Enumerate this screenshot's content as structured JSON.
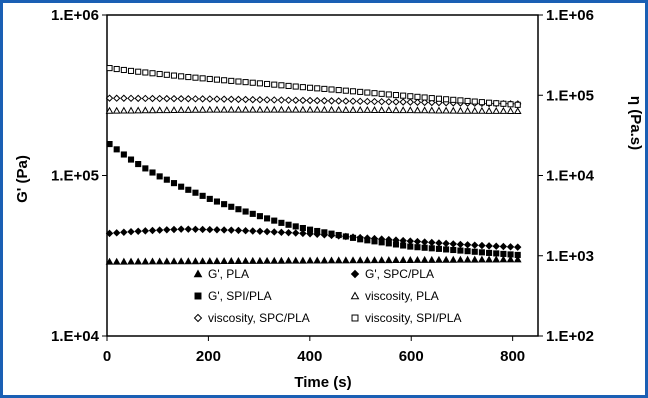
{
  "chart_data": {
    "type": "scatter",
    "xlabel": "Time (s)",
    "ylabel_left": "G' (Pa)",
    "ylabel_right": "η (Pa.s)",
    "xlim": [
      0,
      850
    ],
    "ylim_left": [
      10000,
      1000000
    ],
    "ylim_right": [
      100,
      1000000
    ],
    "yscale": "log",
    "grid": false,
    "legend_position": "bottom-inside",
    "x_ticks": [
      0,
      200,
      400,
      600,
      800
    ],
    "x_tick_labels": [
      "0",
      "200",
      "400",
      "600",
      "800"
    ],
    "y_left_ticks": [
      10000,
      100000,
      1000000
    ],
    "y_left_tick_labels": [
      "1.E+04",
      "1.E+05",
      "1.E+06"
    ],
    "y_right_ticks": [
      100,
      1000,
      10000,
      100000,
      1000000
    ],
    "y_right_tick_labels": [
      "1.E+02",
      "1.E+03",
      "1.E+04",
      "1.E+05",
      "1.E+06"
    ],
    "series": [
      {
        "name": "G', PLA",
        "axis": "left",
        "marker": "triangle-filled",
        "x": [
          5,
          810
        ],
        "y": [
          29000,
          30000
        ],
        "n_points": 58
      },
      {
        "name": "G', SPC/PLA",
        "axis": "right",
        "marker": "diamond-filled",
        "x": [
          5,
          50,
          100,
          150,
          200,
          250,
          300,
          350,
          400,
          450,
          500,
          550,
          600,
          650,
          700,
          750,
          810
        ],
        "y": [
          1900,
          2000,
          2080,
          2150,
          2120,
          2080,
          2020,
          1950,
          1880,
          1780,
          1680,
          1600,
          1520,
          1450,
          1380,
          1330,
          1280
        ],
        "n_points": 58
      },
      {
        "name": "G', SPI/PLA",
        "axis": "left",
        "marker": "square-filled",
        "x": [
          5,
          25,
          50,
          75,
          100,
          125,
          150,
          175,
          200,
          250,
          300,
          350,
          400,
          450,
          500,
          550,
          600,
          650,
          700,
          750,
          810
        ],
        "y": [
          157000,
          141000,
          124000,
          111000,
          100000,
          92000,
          84000,
          78000,
          72000,
          63000,
          56000,
          50000,
          46000,
          43000,
          40000,
          38000,
          36000,
          35000,
          34000,
          33000,
          32000
        ],
        "n_points": 58
      },
      {
        "name": "viscosity, PLA",
        "axis": "right",
        "marker": "triangle-open",
        "x": [
          5,
          100,
          200,
          300,
          400,
          500,
          600,
          700,
          810
        ],
        "y": [
          64000,
          65000,
          66000,
          66000,
          66000,
          65500,
          65000,
          64000,
          63500
        ],
        "n_points": 58
      },
      {
        "name": "viscosity, SPC/PLA",
        "axis": "right",
        "marker": "diamond-open",
        "x": [
          5,
          100,
          200,
          300,
          400,
          500,
          600,
          700,
          810
        ],
        "y": [
          92000,
          91000,
          90000,
          88000,
          86000,
          84000,
          82000,
          80000,
          78000
        ],
        "n_points": 58
      },
      {
        "name": "viscosity, SPI/PLA",
        "axis": "right",
        "marker": "square-open",
        "x": [
          5,
          50,
          100,
          150,
          200,
          250,
          300,
          350,
          400,
          450,
          500,
          550,
          600,
          650,
          700,
          750,
          810
        ],
        "y": [
          218000,
          200000,
          185000,
          171000,
          160000,
          150000,
          141000,
          132000,
          124000,
          117000,
          110000,
          103000,
          97000,
          91000,
          86000,
          81000,
          76000
        ],
        "n_points": 58
      }
    ]
  }
}
